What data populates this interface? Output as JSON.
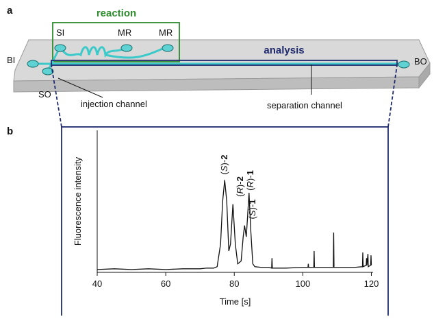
{
  "panel_a": {
    "label": "a",
    "box_title": "reaction",
    "ports": [
      "SI",
      "MR",
      "MR",
      "BI",
      "BO",
      "SO"
    ],
    "analysis": "analysis",
    "injection": "injection channel",
    "separation": "separation channel"
  },
  "panel_b": {
    "label": "b"
  },
  "chart_data": {
    "type": "line",
    "xlabel": "Time [s]",
    "ylabel": "Fluorescence intensity",
    "xlim": [
      40,
      120.5
    ],
    "xticks": [
      40,
      60,
      80,
      100,
      120
    ],
    "ylim": [
      0,
      100
    ],
    "color": "#111111",
    "annotations": [
      "(S)-2",
      "(R)-2",
      "(S)-1",
      "(R)-1"
    ],
    "x": [
      40,
      45,
      50,
      55,
      60,
      65,
      70,
      72,
      74,
      75,
      76,
      76.6,
      77.2,
      77.8,
      78.4,
      78.9,
      79.6,
      80.3,
      81,
      82,
      82.6,
      83,
      83.5,
      83.9,
      84.3,
      84.8,
      85.4,
      86,
      88,
      90,
      90.9,
      91,
      91.1,
      95,
      100,
      101.5,
      101.6,
      101.7,
      103.2,
      103.3,
      103.4,
      108.9,
      109,
      109.1,
      112,
      115,
      117.4,
      117.5,
      117.6,
      118.5,
      118.6,
      118.7,
      119,
      119.1,
      119.8,
      119.9,
      120
    ],
    "values": [
      2,
      2.5,
      2,
      2.5,
      2,
      2.5,
      2.5,
      3,
      3,
      4,
      20,
      50,
      65,
      50,
      15,
      20,
      48,
      20,
      6,
      8,
      25,
      33,
      25,
      40,
      56,
      30,
      6,
      4,
      3.5,
      3.5,
      3,
      10,
      3,
      3,
      3.5,
      3.5,
      6,
      3.5,
      3.5,
      15,
      3.5,
      3.5,
      28,
      3.5,
      3.5,
      3.5,
      4,
      14,
      4,
      5,
      10,
      5,
      13,
      4,
      5,
      12,
      5
    ]
  }
}
